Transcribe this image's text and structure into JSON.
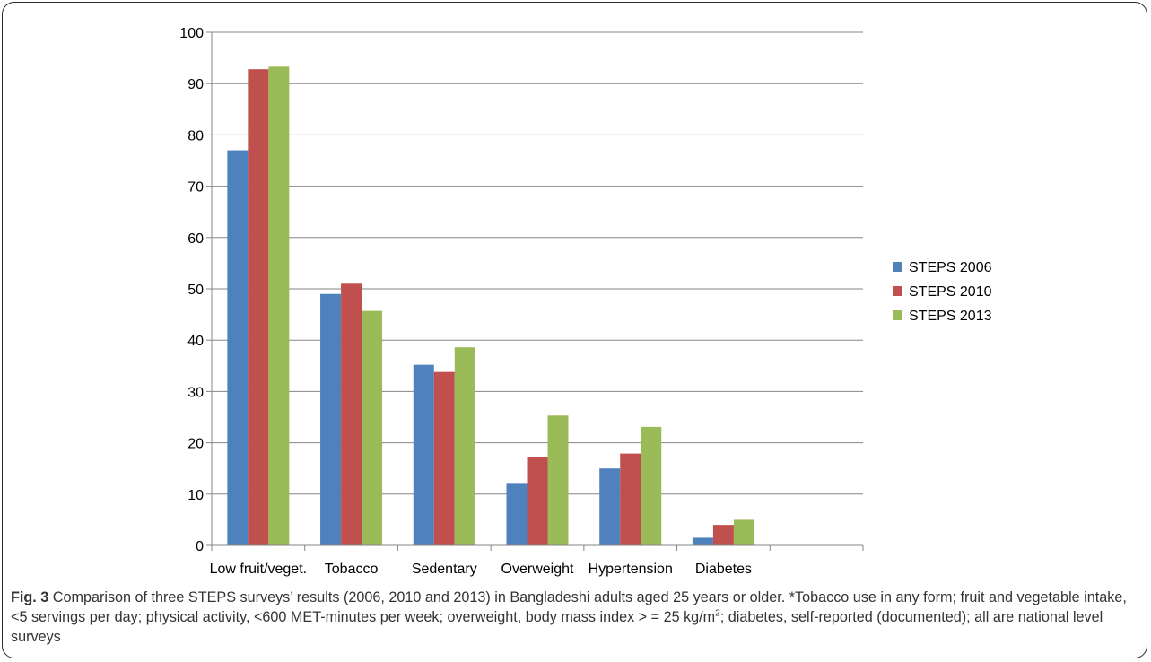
{
  "chart_data": {
    "type": "bar",
    "categories": [
      "Low fruit/veget.",
      "Tobacco",
      "Sedentary",
      "Overweight",
      "Hypertension",
      "Diabetes",
      ""
    ],
    "series": [
      {
        "name": "STEPS 2006",
        "color": "#4f81bd",
        "values": [
          77,
          49,
          35.2,
          12,
          15,
          1.5,
          null
        ]
      },
      {
        "name": "STEPS 2010",
        "color": "#c0504d",
        "values": [
          92.8,
          51,
          33.8,
          17.3,
          17.9,
          4,
          null
        ]
      },
      {
        "name": "STEPS 2013",
        "color": "#9bbb59",
        "values": [
          93.3,
          45.7,
          38.6,
          25.3,
          23.1,
          5,
          null
        ]
      }
    ],
    "ylim": [
      0,
      100
    ],
    "yticks": [
      0,
      10,
      20,
      30,
      40,
      50,
      60,
      70,
      80,
      90,
      100
    ],
    "grid": true,
    "legend": "right",
    "xlabel": "",
    "ylabel": "",
    "title": ""
  },
  "caption": {
    "label": "Fig. 3",
    "text_1": " Comparison of three STEPS surveys’ results (2006, 2010 and 2013) in Bangladeshi adults aged 25 years or older. *Tobacco use in any form; fruit and vegetable intake, <5 servings per day; physical activity, <600 MET-minutes per week; overweight, body mass index > = 25 kg/m",
    "superscript": "2",
    "text_2": "; diabetes, self-reported (documented); all are national level surveys"
  }
}
